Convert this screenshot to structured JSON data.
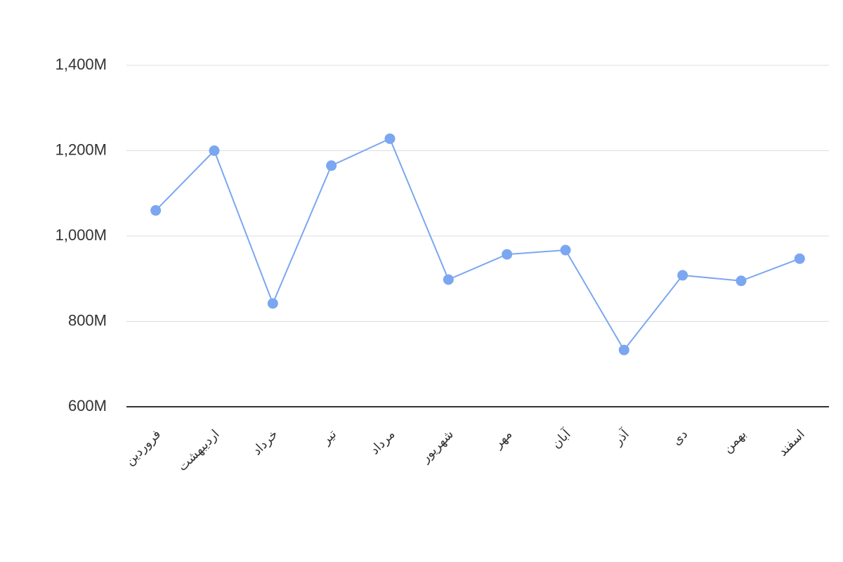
{
  "chart_data": {
    "type": "line",
    "categories": [
      "فروردین",
      "اردیبهشت",
      "خرداد",
      "تیر",
      "مرداد",
      "شهریور",
      "مهر",
      "آبان",
      "آذر",
      "دی",
      "بهمن",
      "اسفند"
    ],
    "values": [
      1060000000,
      1200000000,
      842000000,
      1165000000,
      1228000000,
      898000000,
      957000000,
      967000000,
      733000000,
      908000000,
      895000000,
      947000000
    ],
    "color": "#7ba7f0",
    "ylim": [
      600000000,
      1400000000
    ],
    "yticks": [
      {
        "value": 600000000,
        "label": "600M"
      },
      {
        "value": 800000000,
        "label": "800M"
      },
      {
        "value": 1000000000,
        "label": "1,000M"
      },
      {
        "value": 1200000000,
        "label": "1,200M"
      },
      {
        "value": 1400000000,
        "label": "1,400M"
      }
    ],
    "grid": true
  }
}
